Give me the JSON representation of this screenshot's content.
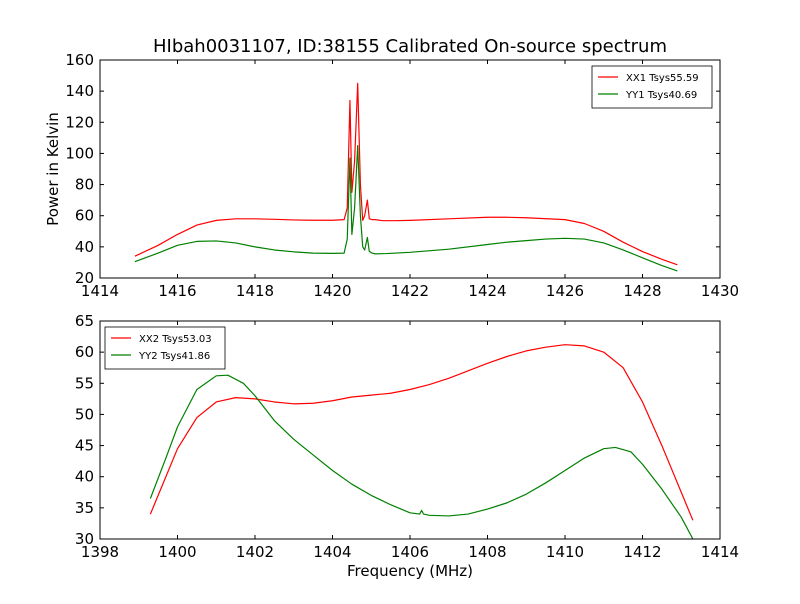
{
  "figure_title": "HIbah0031107, ID:38155 Calibrated On-source spectrum",
  "chart_data": [
    {
      "type": "line",
      "title": "HIbah0031107, ID:38155 Calibrated On-source spectrum",
      "xlabel": "",
      "ylabel": "Power in Kelvin",
      "xlim": [
        1414,
        1430
      ],
      "ylim": [
        20,
        160
      ],
      "xticks": [
        "1414",
        "1416",
        "1418",
        "1420",
        "1422",
        "1424",
        "1426",
        "1428",
        "1430"
      ],
      "yticks": [
        "20",
        "40",
        "60",
        "80",
        "100",
        "120",
        "140",
        "160"
      ],
      "legend_position": "top-right",
      "series": [
        {
          "name": "XX1 Tsys55.59",
          "color": "#ff0000",
          "x": [
            1414.9,
            1415.5,
            1416.0,
            1416.5,
            1417.0,
            1417.5,
            1418.0,
            1418.5,
            1419.0,
            1419.5,
            1420.0,
            1420.3,
            1420.38,
            1420.45,
            1420.5,
            1420.57,
            1420.65,
            1420.72,
            1420.78,
            1420.83,
            1420.9,
            1420.95,
            1421.02,
            1421.1,
            1421.3,
            1421.6,
            1422.0,
            1423.0,
            1424.0,
            1424.5,
            1425.0,
            1426.0,
            1426.5,
            1427.0,
            1427.5,
            1428.0,
            1428.5,
            1428.9
          ],
          "y": [
            34,
            41,
            48,
            54,
            57,
            58,
            58,
            57.7,
            57.3,
            57.1,
            57.1,
            57.5,
            65,
            134,
            75,
            95,
            145,
            80,
            57,
            60,
            70,
            58,
            57.5,
            57.5,
            56.8,
            56.8,
            57,
            58,
            59,
            59,
            58.7,
            57.5,
            55,
            50,
            43,
            37,
            32,
            28.5
          ]
        },
        {
          "name": "YY1 Tsys40.69",
          "color": "#008000",
          "x": [
            1414.9,
            1415.5,
            1416.0,
            1416.5,
            1417.0,
            1417.5,
            1418.0,
            1418.5,
            1419.0,
            1419.5,
            1420.0,
            1420.3,
            1420.38,
            1420.45,
            1420.5,
            1420.57,
            1420.65,
            1420.72,
            1420.78,
            1420.83,
            1420.9,
            1420.95,
            1421.02,
            1421.1,
            1421.4,
            1422.0,
            1423.0,
            1424.0,
            1424.5,
            1425.0,
            1425.5,
            1426.0,
            1426.5,
            1427.0,
            1427.5,
            1428.0,
            1428.5,
            1428.9
          ],
          "y": [
            30.5,
            36,
            41,
            43.5,
            43.8,
            42.5,
            40,
            38,
            36.8,
            36,
            35.8,
            36,
            45,
            97,
            48,
            65,
            105,
            60,
            40,
            38,
            46,
            37,
            36,
            35.5,
            35.7,
            36.5,
            38.5,
            41.5,
            43,
            44,
            45,
            45.5,
            45,
            42.5,
            38,
            33,
            28,
            24.5
          ]
        }
      ]
    },
    {
      "type": "line",
      "title": "",
      "xlabel": "Frequency (MHz)",
      "ylabel": "",
      "xlim": [
        1398,
        1414
      ],
      "ylim": [
        30,
        65
      ],
      "xticks": [
        "1398",
        "1400",
        "1402",
        "1404",
        "1406",
        "1408",
        "1410",
        "1412",
        "1414"
      ],
      "yticks": [
        "30",
        "35",
        "40",
        "45",
        "50",
        "55",
        "60",
        "65"
      ],
      "legend_position": "top-left",
      "series": [
        {
          "name": "XX2 Tsys53.03",
          "color": "#ff0000",
          "x": [
            1399.3,
            1399.7,
            1400.0,
            1400.5,
            1401.0,
            1401.5,
            1402.0,
            1402.5,
            1403.0,
            1403.5,
            1404.0,
            1404.5,
            1405.0,
            1405.5,
            1406.0,
            1406.5,
            1407.0,
            1407.5,
            1408.0,
            1408.5,
            1409.0,
            1409.5,
            1410.0,
            1410.5,
            1411.0,
            1411.5,
            1412.0,
            1412.5,
            1413.0,
            1413.3
          ],
          "y": [
            34,
            40,
            44.5,
            49.5,
            52,
            52.7,
            52.5,
            52,
            51.7,
            51.8,
            52.2,
            52.8,
            53.1,
            53.4,
            54,
            54.8,
            55.8,
            57,
            58.2,
            59.3,
            60.2,
            60.8,
            61.2,
            61,
            60,
            57.5,
            52,
            45,
            37.5,
            33
          ]
        },
        {
          "name": "YY2 Tsys41.86",
          "color": "#008000",
          "x": [
            1399.3,
            1399.7,
            1400.0,
            1400.5,
            1401.0,
            1401.3,
            1401.7,
            1402.0,
            1402.5,
            1403.0,
            1403.5,
            1404.0,
            1404.5,
            1405.0,
            1405.5,
            1406.0,
            1406.25,
            1406.3,
            1406.35,
            1406.5,
            1407.0,
            1407.5,
            1408.0,
            1408.5,
            1409.0,
            1409.5,
            1410.0,
            1410.5,
            1411.0,
            1411.3,
            1411.7,
            1412.0,
            1412.5,
            1413.0,
            1413.3
          ],
          "y": [
            36.5,
            43,
            48,
            54,
            56.2,
            56.3,
            55,
            53,
            49,
            46,
            43.5,
            41,
            38.8,
            37,
            35.5,
            34.2,
            34,
            34.6,
            34,
            33.8,
            33.7,
            34,
            34.8,
            35.8,
            37.2,
            39,
            41,
            43,
            44.5,
            44.7,
            44,
            42,
            38,
            33.5,
            30
          ]
        }
      ]
    }
  ]
}
